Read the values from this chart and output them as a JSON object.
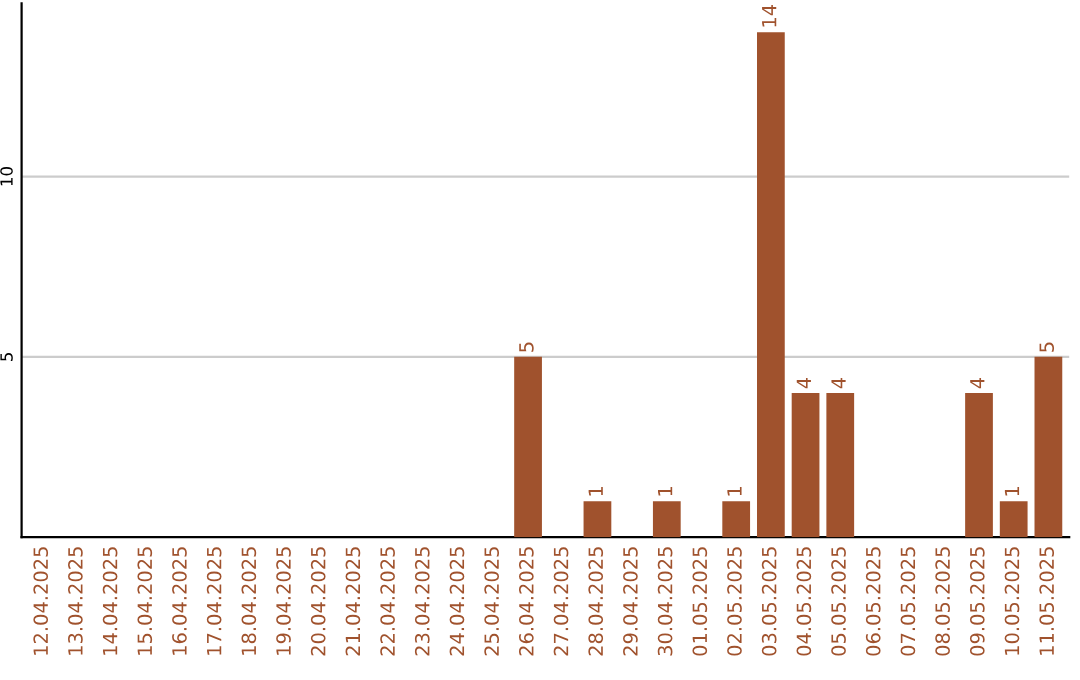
{
  "chart_data": {
    "type": "bar",
    "categories": [
      "12.04.2025",
      "13.04.2025",
      "14.04.2025",
      "15.04.2025",
      "16.04.2025",
      "17.04.2025",
      "18.04.2025",
      "19.04.2025",
      "20.04.2025",
      "21.04.2025",
      "22.04.2025",
      "23.04.2025",
      "24.04.2025",
      "25.04.2025",
      "26.04.2025",
      "27.04.2025",
      "28.04.2025",
      "29.04.2025",
      "30.04.2025",
      "01.05.2025",
      "02.05.2025",
      "03.05.2025",
      "04.05.2025",
      "05.05.2025",
      "06.05.2025",
      "07.05.2025",
      "08.05.2025",
      "09.05.2025",
      "10.05.2025",
      "11.05.2025"
    ],
    "values": [
      0,
      0,
      0,
      0,
      0,
      0,
      0,
      0,
      0,
      0,
      0,
      0,
      0,
      0,
      5,
      0,
      1,
      0,
      1,
      0,
      1,
      14,
      4,
      4,
      0,
      0,
      0,
      4,
      1,
      5
    ],
    "value_labels": [
      null,
      null,
      null,
      null,
      null,
      null,
      null,
      null,
      null,
      null,
      null,
      null,
      null,
      null,
      "5",
      null,
      "1",
      null,
      "1",
      null,
      "1",
      "14",
      "4",
      "4",
      null,
      null,
      null,
      "4",
      "1",
      "5"
    ],
    "color": "#a0522d",
    "ylim": [
      0,
      14.8
    ],
    "yticks": [
      5,
      10
    ],
    "grid": "y"
  }
}
